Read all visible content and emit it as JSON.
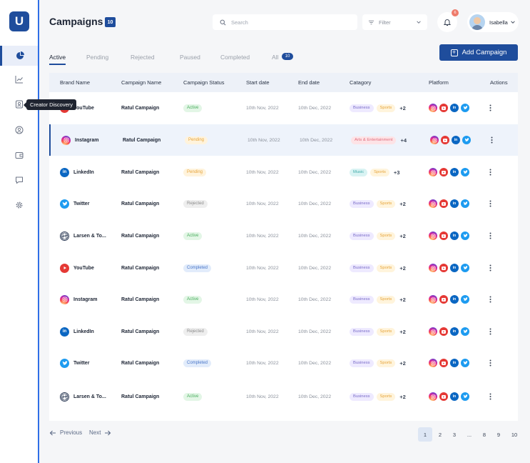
{
  "app": {
    "logo": "U"
  },
  "sidebar": {
    "items": [
      {
        "icon": "pie-chart-icon",
        "active": true
      },
      {
        "icon": "line-chart-icon"
      },
      {
        "icon": "creator-discovery-icon"
      },
      {
        "icon": "user-circle-icon"
      },
      {
        "icon": "wallet-icon"
      },
      {
        "icon": "chat-icon"
      },
      {
        "icon": "settings-icon"
      }
    ],
    "tooltip": "Creator Discovery"
  },
  "header": {
    "title": "Campaigns",
    "count": "10",
    "search_placeholder": "Search",
    "filter_label": "Filter",
    "notification_count": "6",
    "user_name": "Isabella"
  },
  "tabs": [
    {
      "label": "Active"
    },
    {
      "label": "Pending"
    },
    {
      "label": "Rejected"
    },
    {
      "label": "Paused"
    },
    {
      "label": "Completed"
    },
    {
      "label": "All",
      "badge": "10"
    }
  ],
  "add_button": "Add Campaign",
  "table": {
    "columns": [
      "Brand Name",
      "Campaign Name",
      "Campaign Status",
      "Start date",
      "End date",
      "Catagory",
      "Platform",
      "Actions"
    ],
    "rows": [
      {
        "brand": "YouTube",
        "brand_icon": "youtube",
        "campaign": "Ratul Campaign",
        "status": "Active",
        "start": "10th Nov, 2022",
        "end": "10th Dec, 2022",
        "tags": [
          "Business",
          "Sports"
        ],
        "more": "+2"
      },
      {
        "brand": "Instagram",
        "brand_icon": "instagram",
        "campaign": "Ratul Campaign",
        "status": "Pending",
        "start": "10th Nov, 2022",
        "end": "10th Dec, 2022",
        "tags": [
          "Arts & Entertainment"
        ],
        "more": "+4"
      },
      {
        "brand": "LinkedIn",
        "brand_icon": "linkedin",
        "campaign": "Ratul Campaign",
        "status": "Pending",
        "start": "10th Nov, 2022",
        "end": "10th Dec, 2022",
        "tags": [
          "Music",
          "Sports"
        ],
        "more": "+3"
      },
      {
        "brand": "Twitter",
        "brand_icon": "twitter",
        "campaign": "Ratul Campaign",
        "status": "Rejected",
        "start": "10th Nov, 2022",
        "end": "10th Dec, 2022",
        "tags": [
          "Business",
          "Sports"
        ],
        "more": "+2"
      },
      {
        "brand": "Larsen & To...",
        "brand_icon": "larsen",
        "campaign": "Ratul Campaign",
        "status": "Active",
        "start": "10th Nov, 2022",
        "end": "10th Dec, 2022",
        "tags": [
          "Business",
          "Sports"
        ],
        "more": "+2"
      },
      {
        "brand": "YouTube",
        "brand_icon": "youtube",
        "campaign": "Ratul Campaign",
        "status": "Completed",
        "start": "10th Nov, 2022",
        "end": "10th Dec, 2022",
        "tags": [
          "Business",
          "Sports"
        ],
        "more": "+2"
      },
      {
        "brand": "Instagram",
        "brand_icon": "instagram",
        "campaign": "Ratul Campaign",
        "status": "Active",
        "start": "10th Nov, 2022",
        "end": "10th Dec, 2022",
        "tags": [
          "Business",
          "Sports"
        ],
        "more": "+2"
      },
      {
        "brand": "LinkedIn",
        "brand_icon": "linkedin",
        "campaign": "Ratul Campaign",
        "status": "Rejected",
        "start": "10th Nov, 2022",
        "end": "10th Dec, 2022",
        "tags": [
          "Business",
          "Sports"
        ],
        "more": "+2"
      },
      {
        "brand": "Twitter",
        "brand_icon": "twitter",
        "campaign": "Ratul Campaign",
        "status": "Completed",
        "start": "10th Nov, 2022",
        "end": "10th Dec, 2022",
        "tags": [
          "Business",
          "Sports"
        ],
        "more": "+2"
      },
      {
        "brand": "Larsen & To...",
        "brand_icon": "larsen",
        "campaign": "Ratul Campaign",
        "status": "Active",
        "start": "10th Nov, 2022",
        "end": "10th Dec, 2022",
        "tags": [
          "Business",
          "Sports"
        ],
        "more": "+2"
      }
    ]
  },
  "pagination": {
    "prev": "Previous",
    "next": "Next",
    "pages": [
      "1",
      "2",
      "3",
      "...",
      "8",
      "9",
      "10"
    ],
    "current": "1"
  },
  "colors": {
    "accent": "#1f4d9c",
    "sidebar_border": "#2f6fe6"
  }
}
